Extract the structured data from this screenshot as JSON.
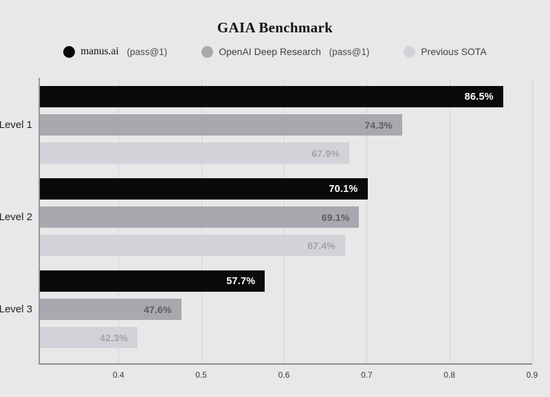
{
  "title": "GAIA Benchmark",
  "legend": [
    {
      "label": "manus.ai",
      "suffix": "(pass@1)",
      "color": "#0a0a0a",
      "serif": true
    },
    {
      "label": "OpenAI Deep Research",
      "suffix": "(pass@1)",
      "color": "#a8a9af",
      "serif": false
    },
    {
      "label": "Previous SOTA",
      "suffix": "",
      "color": "#d2d3d8",
      "serif": false
    }
  ],
  "chart_data": {
    "type": "bar",
    "orientation": "horizontal",
    "title": "GAIA Benchmark",
    "categories": [
      "Level 1",
      "Level 2",
      "Level 3"
    ],
    "series": [
      {
        "name": "manus.ai (pass@1)",
        "values": [
          86.5,
          70.1,
          57.7
        ],
        "unit": "%",
        "color": "#0a0a0a",
        "label_color": "#ffffff"
      },
      {
        "name": "OpenAI Deep Research (pass@1)",
        "values": [
          74.3,
          69.1,
          47.6
        ],
        "unit": "%",
        "color": "#a8a9af",
        "label_color": "#5c5d62"
      },
      {
        "name": "Previous SOTA",
        "values": [
          67.9,
          67.4,
          42.3
        ],
        "unit": "%",
        "color": "#d2d3d8",
        "label_color": "#a2a3a9"
      }
    ],
    "xlabel": "",
    "ylabel": "",
    "x_ticks": [
      "0.4",
      "0.5",
      "0.6",
      "0.7",
      "0.8",
      "0.9"
    ],
    "x_tick_values": [
      0.4,
      0.5,
      0.6,
      0.7,
      0.8,
      0.9
    ],
    "xlim": [
      0.305,
      0.9
    ],
    "grid": "vertical-only",
    "legend_position": "top",
    "colors": {
      "background": "#e8e8e8",
      "gridline": "#d3d3d6",
      "axis": "#8f8f93",
      "tick_label": "#37383c",
      "category_label": "#212226"
    }
  }
}
